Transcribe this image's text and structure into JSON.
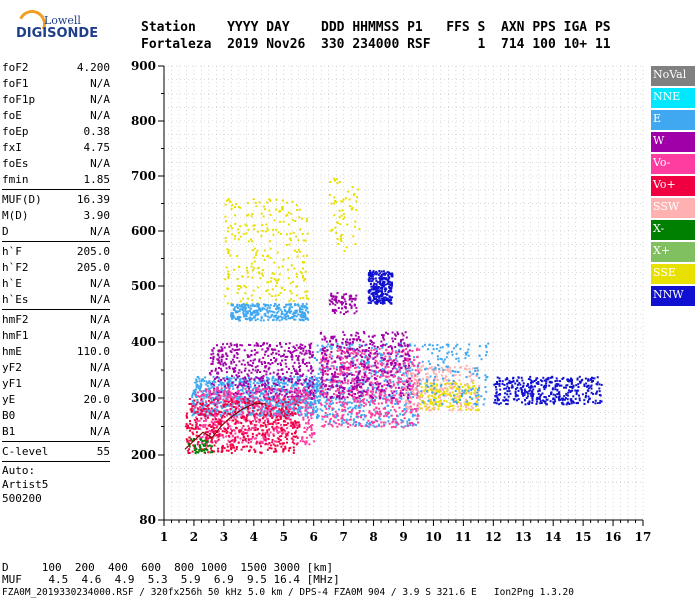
{
  "logo": {
    "line1": "Lowell",
    "line2": "DIGISONDE"
  },
  "header": {
    "row1": "Station    YYYY DAY    DDD HHMMSS P1   FFS S  AXN PPS IGA PS",
    "row2": "Fortaleza  2019 Nov26  330 234000 RSF      1  714 100 10+ 11"
  },
  "params": {
    "group1": [
      {
        "name": "foF2",
        "value": "4.200"
      },
      {
        "name": "foF1",
        "value": "N/A"
      },
      {
        "name": "foF1p",
        "value": "N/A"
      },
      {
        "name": "foE",
        "value": "N/A"
      },
      {
        "name": "foEp",
        "value": "0.38"
      },
      {
        "name": "fxI",
        "value": "4.75"
      },
      {
        "name": "foEs",
        "value": "N/A"
      },
      {
        "name": "fmin",
        "value": "1.85"
      }
    ],
    "group2": [
      {
        "name": "MUF(D)",
        "value": "16.39"
      },
      {
        "name": "M(D)",
        "value": "3.90"
      },
      {
        "name": "D",
        "value": "N/A"
      }
    ],
    "group3": [
      {
        "name": "h`F",
        "value": "205.0"
      },
      {
        "name": "h`F2",
        "value": "205.0"
      },
      {
        "name": "h`E",
        "value": "N/A"
      },
      {
        "name": "h`Es",
        "value": "N/A"
      }
    ],
    "group4": [
      {
        "name": "hmF2",
        "value": "N/A"
      },
      {
        "name": "hmF1",
        "value": "N/A"
      },
      {
        "name": "hmE",
        "value": "110.0"
      },
      {
        "name": "yF2",
        "value": "N/A"
      },
      {
        "name": "yF1",
        "value": "N/A"
      },
      {
        "name": "yE",
        "value": "20.0"
      },
      {
        "name": "B0",
        "value": "N/A"
      },
      {
        "name": "B1",
        "value": "N/A"
      }
    ],
    "group5": [
      {
        "name": "C-level",
        "value": "55"
      }
    ],
    "auto": [
      "Auto:",
      "Artist5",
      "500200"
    ]
  },
  "legend": [
    {
      "label": "NoVal",
      "color": "#808080"
    },
    {
      "label": "NNE",
      "color": "#00e8ff"
    },
    {
      "label": "E",
      "color": "#40a8f0"
    },
    {
      "label": "W",
      "color": "#a000a8"
    },
    {
      "label": "Vo-",
      "color": "#ff3ca0"
    },
    {
      "label": "Vo+",
      "color": "#f00040"
    },
    {
      "label": "SSW",
      "color": "#ffb0b0"
    },
    {
      "label": "X-",
      "color": "#008000"
    },
    {
      "label": "X+",
      "color": "#80c060"
    },
    {
      "label": "SSE",
      "color": "#e8e000"
    },
    {
      "label": "NNW",
      "color": "#1010d0"
    }
  ],
  "bottom": {
    "d_row": "D     100  200  400  600  800 1000  1500 3000 [km]",
    "muf_row": "MUF    4.5  4.6  4.9  5.3  5.9  6.9  9.5 16.4 [MHz]",
    "footer": "FZA0M_2019330234000.RSF / 320fx256h 50 kHz 5.0 km / DPS-4 FZA0M 904 / 3.9 S 321.6 E   Ion2Png 1.3.20"
  },
  "chart_data": {
    "type": "scatter",
    "xlim": [
      1,
      17
    ],
    "ylim": [
      80,
      900
    ],
    "x_ticks": [
      "1",
      "2",
      "3",
      "4",
      "5",
      "6",
      "7",
      "8",
      "9",
      "10",
      "11",
      "12",
      "13",
      "14",
      "15",
      "16",
      "17"
    ],
    "y_ticks": [
      "80",
      "200",
      "300",
      "400",
      "500",
      "600",
      "700",
      "800",
      "900"
    ],
    "grid": true,
    "clusters": [
      {
        "color": "#40a8f0",
        "x": [
          1.9,
          6.2
        ],
        "y": [
          270,
          340
        ],
        "density": 900
      },
      {
        "color": "#a000a8",
        "x": [
          2.5,
          6.0
        ],
        "y": [
          300,
          400
        ],
        "density": 500
      },
      {
        "color": "#ff3ca0",
        "x": [
          2.0,
          6.0
        ],
        "y": [
          220,
          320
        ],
        "density": 600
      },
      {
        "color": "#f00040",
        "x": [
          1.7,
          5.5
        ],
        "y": [
          205,
          300
        ],
        "density": 500
      },
      {
        "color": "#e8e000",
        "x": [
          3.0,
          5.8
        ],
        "y": [
          470,
          660
        ],
        "density": 260
      },
      {
        "color": "#40a8f0",
        "x": [
          3.2,
          5.8
        ],
        "y": [
          440,
          470
        ],
        "density": 300
      },
      {
        "color": "#40a8f0",
        "x": [
          6.0,
          9.5
        ],
        "y": [
          250,
          400
        ],
        "density": 500
      },
      {
        "color": "#ff3ca0",
        "x": [
          6.2,
          9.5
        ],
        "y": [
          250,
          390
        ],
        "density": 600
      },
      {
        "color": "#a000a8",
        "x": [
          6.2,
          9.2
        ],
        "y": [
          300,
          420
        ],
        "density": 400
      },
      {
        "color": "#1010d0",
        "x": [
          7.8,
          8.6
        ],
        "y": [
          470,
          530
        ],
        "density": 260
      },
      {
        "color": "#a000a8",
        "x": [
          6.5,
          7.4
        ],
        "y": [
          450,
          490
        ],
        "density": 80
      },
      {
        "color": "#e8e000",
        "x": [
          6.5,
          7.5
        ],
        "y": [
          560,
          700
        ],
        "density": 60
      },
      {
        "color": "#ffb0b0",
        "x": [
          9.0,
          11.5
        ],
        "y": [
          280,
          360
        ],
        "density": 260
      },
      {
        "color": "#e8e000",
        "x": [
          9.5,
          11.5
        ],
        "y": [
          280,
          330
        ],
        "density": 150
      },
      {
        "color": "#40a8f0",
        "x": [
          9.5,
          11.8
        ],
        "y": [
          290,
          400
        ],
        "density": 150
      },
      {
        "color": "#1010d0",
        "x": [
          12.0,
          15.6
        ],
        "y": [
          290,
          340
        ],
        "density": 400
      },
      {
        "color": "#008000",
        "x": [
          1.8,
          2.6
        ],
        "y": [
          205,
          230
        ],
        "density": 40
      }
    ]
  }
}
